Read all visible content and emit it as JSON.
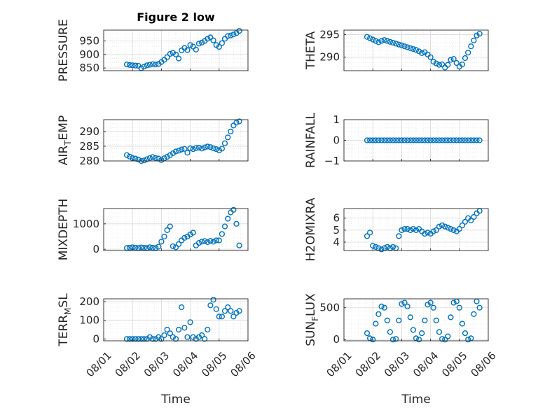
{
  "figure": {
    "title": "Figure 2 low",
    "xlabel": "Time"
  },
  "colors": {
    "marker": "#0072bd",
    "axis": "#262626",
    "grid": "#d9d9d9"
  },
  "x_ticks": [
    "08/01",
    "08/02",
    "08/03",
    "08/04",
    "08/05",
    "08/06"
  ],
  "chart_data": [
    {
      "type": "scatter",
      "title": "Figure 2 low",
      "ylabel": "PRESSURE",
      "ylim": [
        840,
        990
      ],
      "yticks": [
        850,
        900,
        950
      ],
      "xlim": [
        0,
        5
      ],
      "xlabel": "",
      "grid": true,
      "x": [
        0.8,
        0.9,
        1.0,
        1.1,
        1.2,
        1.3,
        1.4,
        1.5,
        1.6,
        1.7,
        1.8,
        1.9,
        2.0,
        2.1,
        2.2,
        2.3,
        2.4,
        2.5,
        2.6,
        2.7,
        2.8,
        2.9,
        3.0,
        3.1,
        3.2,
        3.3,
        3.4,
        3.5,
        3.6,
        3.7,
        3.8,
        3.9,
        4.0,
        4.1,
        4.2,
        4.3,
        4.4,
        4.5,
        4.6,
        4.7
      ],
      "y": [
        863,
        861,
        860,
        859,
        858,
        849,
        855,
        860,
        862,
        864,
        863,
        865,
        872,
        880,
        890,
        902,
        906,
        900,
        885,
        915,
        924,
        916,
        935,
        929,
        918,
        940,
        944,
        950,
        958,
        963,
        952,
        935,
        928,
        942,
        958,
        968,
        970,
        974,
        979,
        987
      ]
    },
    {
      "type": "scatter",
      "ylabel": "THETA",
      "ylim": [
        287,
        296
      ],
      "yticks": [
        290,
        295
      ],
      "xlim": [
        0,
        5
      ],
      "xlabel": "",
      "grid": true,
      "x": [
        0.8,
        0.9,
        1.0,
        1.1,
        1.2,
        1.3,
        1.4,
        1.5,
        1.6,
        1.7,
        1.8,
        1.9,
        2.0,
        2.1,
        2.2,
        2.3,
        2.4,
        2.5,
        2.6,
        2.7,
        2.8,
        2.9,
        3.0,
        3.1,
        3.2,
        3.3,
        3.4,
        3.5,
        3.6,
        3.7,
        3.8,
        3.9,
        4.0,
        4.1,
        4.2,
        4.3,
        4.4,
        4.5,
        4.6,
        4.7
      ],
      "y": [
        294.5,
        294.2,
        293.9,
        293.6,
        293.3,
        293.6,
        293.8,
        293.6,
        293.4,
        293.2,
        293.0,
        292.8,
        292.6,
        292.4,
        292.2,
        292.0,
        291.8,
        291.6,
        291.3,
        290.9,
        291.1,
        290.6,
        290.0,
        289.0,
        288.6,
        288.3,
        288.4,
        287.7,
        288.3,
        289.4,
        289.6,
        288.7,
        287.9,
        288.4,
        289.8,
        291.0,
        292.4,
        293.7,
        294.8,
        295.2
      ]
    },
    {
      "type": "scatter",
      "ylabel": "AIR_TEMP",
      "ylim": [
        280,
        294
      ],
      "yticks": [
        280,
        285,
        290
      ],
      "xlim": [
        0,
        5
      ],
      "xlabel": "",
      "grid": true,
      "x": [
        0.8,
        0.9,
        1.0,
        1.1,
        1.2,
        1.3,
        1.4,
        1.5,
        1.6,
        1.7,
        1.8,
        1.9,
        2.0,
        2.1,
        2.2,
        2.3,
        2.4,
        2.5,
        2.6,
        2.7,
        2.8,
        2.9,
        3.0,
        3.1,
        3.2,
        3.3,
        3.4,
        3.5,
        3.6,
        3.7,
        3.8,
        3.9,
        4.0,
        4.1,
        4.2,
        4.3,
        4.4,
        4.5,
        4.6,
        4.7
      ],
      "y": [
        282.0,
        281.5,
        281.0,
        280.8,
        280.5,
        280.0,
        280.2,
        280.6,
        281.0,
        281.3,
        281.0,
        280.8,
        280.3,
        280.9,
        281.4,
        282.0,
        282.6,
        283.2,
        283.5,
        283.9,
        284.1,
        282.8,
        284.3,
        284.0,
        284.4,
        284.5,
        284.2,
        284.6,
        284.9,
        284.7,
        284.3,
        284.0,
        283.6,
        284.2,
        286.0,
        288.0,
        290.0,
        292.0,
        293.0,
        293.4
      ]
    },
    {
      "type": "scatter",
      "ylabel": "RAINFALL",
      "ylim": [
        -1,
        1
      ],
      "yticks": [
        -1,
        0,
        1
      ],
      "xlim": [
        0,
        5
      ],
      "xlabel": "",
      "grid": true,
      "x": [
        0.8,
        0.9,
        1.0,
        1.1,
        1.2,
        1.3,
        1.4,
        1.5,
        1.6,
        1.7,
        1.8,
        1.9,
        2.0,
        2.1,
        2.2,
        2.3,
        2.4,
        2.5,
        2.6,
        2.7,
        2.8,
        2.9,
        3.0,
        3.1,
        3.2,
        3.3,
        3.4,
        3.5,
        3.6,
        3.7,
        3.8,
        3.9,
        4.0,
        4.1,
        4.2,
        4.3,
        4.4,
        4.5,
        4.6,
        4.7
      ],
      "y": [
        0,
        0,
        0,
        0,
        0,
        0,
        0,
        0,
        0,
        0,
        0,
        0,
        0,
        0,
        0,
        0,
        0,
        0,
        0,
        0,
        0,
        0,
        0,
        0,
        0,
        0,
        0,
        0,
        0,
        0,
        0,
        0,
        0,
        0,
        0,
        0,
        0,
        0,
        0,
        0
      ]
    },
    {
      "type": "scatter",
      "ylabel": "MIXDEPTH",
      "ylim": [
        -50,
        1600
      ],
      "yticks": [
        0,
        1000
      ],
      "xlim": [
        0,
        5
      ],
      "xlabel": "",
      "grid": true,
      "x": [
        0.8,
        0.9,
        1.0,
        1.1,
        1.2,
        1.3,
        1.4,
        1.5,
        1.6,
        1.7,
        1.8,
        1.9,
        2.0,
        2.1,
        2.2,
        2.3,
        2.4,
        2.5,
        2.6,
        2.7,
        2.8,
        2.9,
        3.0,
        3.1,
        3.2,
        3.3,
        3.4,
        3.5,
        3.6,
        3.7,
        3.8,
        3.9,
        4.0,
        4.1,
        4.2,
        4.3,
        4.4,
        4.5,
        4.6,
        4.7
      ],
      "y": [
        50,
        60,
        80,
        60,
        50,
        70,
        60,
        50,
        80,
        60,
        50,
        100,
        300,
        500,
        750,
        900,
        120,
        80,
        200,
        350,
        450,
        500,
        580,
        650,
        150,
        250,
        300,
        320,
        280,
        330,
        300,
        350,
        350,
        600,
        900,
        1200,
        1450,
        1550,
        1000,
        150
      ]
    },
    {
      "type": "scatter",
      "ylabel": "H2OMIXRA",
      "ylim": [
        3.3,
        6.8
      ],
      "yticks": [
        4,
        5,
        6
      ],
      "xlim": [
        0,
        5
      ],
      "xlabel": "",
      "grid": true,
      "x": [
        0.8,
        0.9,
        1.0,
        1.1,
        1.2,
        1.3,
        1.4,
        1.5,
        1.6,
        1.7,
        1.8,
        1.9,
        2.0,
        2.1,
        2.2,
        2.3,
        2.4,
        2.5,
        2.6,
        2.7,
        2.8,
        2.9,
        3.0,
        3.1,
        3.2,
        3.3,
        3.4,
        3.5,
        3.6,
        3.7,
        3.8,
        3.9,
        4.0,
        4.1,
        4.2,
        4.3,
        4.4,
        4.5,
        4.6,
        4.7
      ],
      "y": [
        4.5,
        4.8,
        3.7,
        3.6,
        3.5,
        3.4,
        3.5,
        3.6,
        3.5,
        3.6,
        3.5,
        4.5,
        5.0,
        5.1,
        5.1,
        5.0,
        5.1,
        5.0,
        5.1,
        4.9,
        4.7,
        4.8,
        4.7,
        4.9,
        5.0,
        5.3,
        5.4,
        5.3,
        5.2,
        5.1,
        5.0,
        4.9,
        5.1,
        5.4,
        5.7,
        6.0,
        5.8,
        6.1,
        6.4,
        6.6
      ]
    },
    {
      "type": "scatter",
      "ylabel": "TERR_MSL",
      "ylim": [
        -10,
        215
      ],
      "yticks": [
        0,
        100,
        200
      ],
      "xlim": [
        0,
        5
      ],
      "xlabel": "",
      "grid": true,
      "x": [
        0.8,
        0.9,
        1.0,
        1.1,
        1.2,
        1.3,
        1.4,
        1.5,
        1.6,
        1.7,
        1.8,
        1.9,
        2.0,
        2.1,
        2.2,
        2.3,
        2.4,
        2.5,
        2.6,
        2.7,
        2.8,
        2.9,
        3.0,
        3.1,
        3.2,
        3.3,
        3.4,
        3.5,
        3.6,
        3.7,
        3.8,
        3.9,
        4.0,
        4.1,
        4.2,
        4.3,
        4.4,
        4.5,
        4.6,
        4.7
      ],
      "y": [
        0,
        0,
        0,
        0,
        0,
        0,
        0,
        0,
        10,
        0,
        0,
        10,
        0,
        20,
        50,
        30,
        10,
        0,
        50,
        170,
        60,
        10,
        90,
        10,
        0,
        10,
        20,
        0,
        50,
        180,
        210,
        160,
        120,
        120,
        150,
        170,
        150,
        120,
        140,
        150
      ]
    },
    {
      "type": "scatter",
      "ylabel": "SUN_FLUX",
      "ylim": [
        -20,
        640
      ],
      "yticks": [
        0,
        500
      ],
      "xlim": [
        0,
        5
      ],
      "xlabel": "",
      "grid": true,
      "x": [
        0.8,
        0.9,
        1.0,
        1.1,
        1.2,
        1.3,
        1.4,
        1.5,
        1.6,
        1.7,
        1.8,
        1.9,
        2.0,
        2.1,
        2.2,
        2.3,
        2.4,
        2.5,
        2.6,
        2.7,
        2.8,
        2.9,
        3.0,
        3.1,
        3.2,
        3.3,
        3.4,
        3.5,
        3.6,
        3.7,
        3.8,
        3.9,
        4.0,
        4.1,
        4.2,
        4.3,
        4.4,
        4.5,
        4.6,
        4.7
      ],
      "y": [
        100,
        20,
        0,
        250,
        400,
        520,
        500,
        300,
        120,
        0,
        10,
        300,
        560,
        580,
        520,
        350,
        150,
        20,
        0,
        100,
        300,
        550,
        580,
        500,
        300,
        120,
        10,
        0,
        50,
        350,
        580,
        600,
        500,
        250,
        100,
        0,
        20,
        400,
        600,
        500
      ]
    }
  ]
}
